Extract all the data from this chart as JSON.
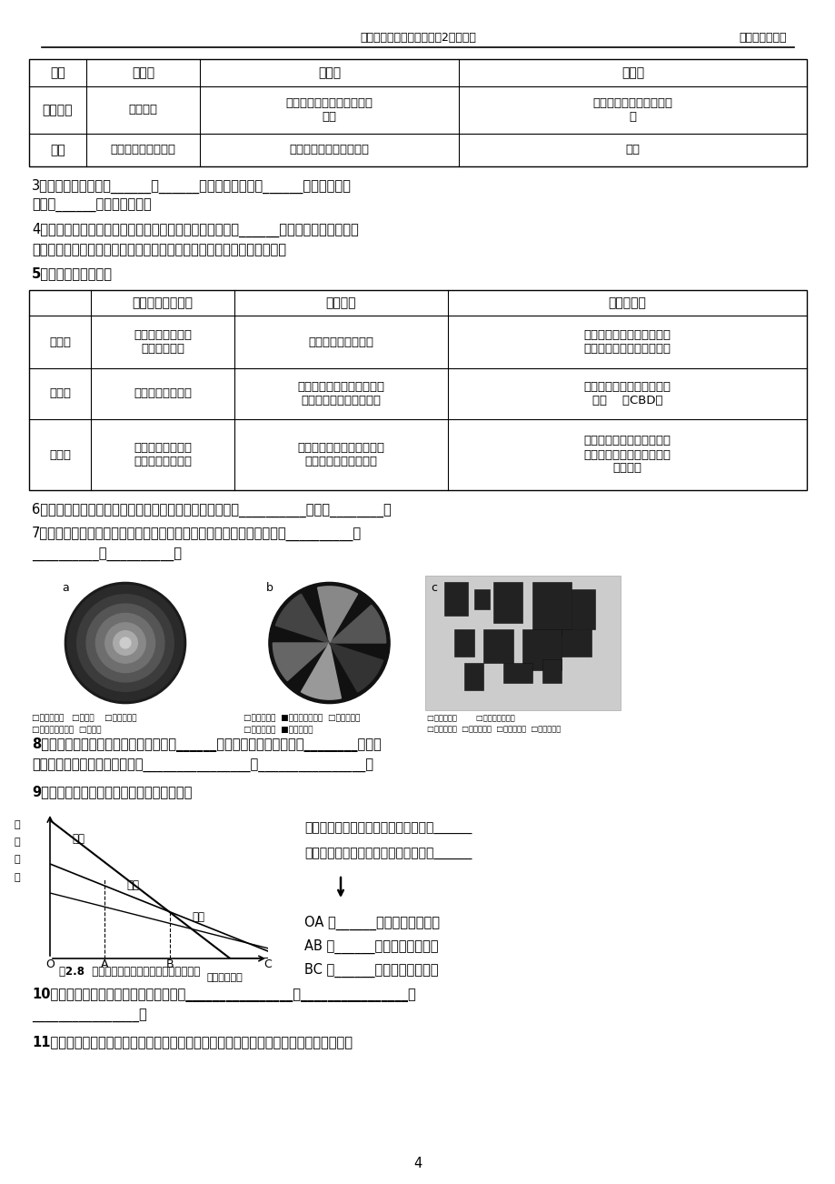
{
  "page_bg": "#ffffff",
  "header_left": "高二学业水平考试地理必修2复习提纲",
  "header_right": "五中地理组编写",
  "footer_page": "4",
  "table1_headers": [
    "类型",
    "团块状",
    "条带状",
    "组团状"
  ],
  "table1_row1": [
    "分布地区",
    "平原地区",
    "沿铁路或河流、谷地等被迫\n延伸",
    "地形崎岖不平的丘陵、山\n地"
  ],
  "table1_row2": [
    "举例",
    "成都、合肥、华盛顿",
    "兰州、洛阳、西宁、宜昌",
    "重庆"
  ],
  "text3a": "3、城市用地可以分为______、______、政府机关用地、______、休憩及绿化",
  "text3b": "用地、______、农业用地等。",
  "text4a": "4、不同类型的土地利用在城市里的集中，就形成了不同的______区，其之间无明确的界",
  "text4b": "线，某一种功能区以某种土地利用方式为主，可能兼有其他类型的用地。",
  "text5": "5、主要功能区的比较",
  "table2_headers": [
    "",
    "占用城市土地面积",
    "区位特点",
    "功能区特点"
  ],
  "table2_rows": [
    [
      "住宅区",
      "城市中最为广泛的\n土地利用方式",
      "地价较低，污染较少",
      "出现了中高级住宅和低级住\n宅的分化；两者呈背向发展"
    ],
    [
      "商业区",
      "占用土地相对较少",
      "位于交通便捷的市中心、交\n通干线两侧或街角路口处",
      "经济活动频繁；建筑物高大\n稠密    （CBD）"
    ],
    [
      "工业区",
      "一个城市通常具有\n一个或多个工业区",
      "不断向市区外缘移动，趋向\n于沿主要交通干线分布",
      "专业化程度高，集聚性强，\n城市内部工业区相互集聚形\n成工业区"
    ]
  ],
  "text6": "6、在城市中，不同功能区的分布和组合构成了城市内部的__________，也叫________。",
  "text7": "7、不同城市其内部空间结构是不相同的，代表性的城市地域结构模式有__________、",
  "text7b": "__________、__________。",
  "img_legend_a1": "□中心商业区   □近郊带    □工人住宅里",
  "img_legend_a2": "□中产阶层住宅里  □远郊带",
  "img_legend_b1": "□中心商业区  ■住宅、轻工业区  □稳商住宅区",
  "img_legend_b2": "□中级住宅区  ■高级住宅区",
  "img_legend_c1": "□中心商业区           □低收、轻工业区",
  "img_legend_c2": "□中级住宅区  □高级住宅区  □郊外住宅区  □郊外工业区",
  "text8a": "8、影响城市内部空间结构的主要因素是______因素，体现在各种活动的________能力。",
  "text8b": "影响付租能力高低的因素主要有________________、________________。",
  "text9": "9、各类土地利用付租能力随距离递减示意图",
  "chart_right1": "商业的付租能力受市中心距离的影响最______",
  "chart_right2": "工业的付租能力受市中心距离的影响最______",
  "chart_oa": "OA 段______活动付租能力最强",
  "chart_ab": "AB 段______活动付租能力最强",
  "chart_bc": "BC 段______活动付租能力最强",
  "chart_caption": "图2.8  各类土地利用付租能力随距离递减示意",
  "chart_ylabel": "地\n租\n水\n平",
  "chart_xlabel": "距市中心距离",
  "text10a": "10、影响城市内部空间结构的其他因素有________________、________________、",
  "text10b": "________________。",
  "text11": "11、城市内部空间结构随城市发展而逐渐形成和变化的。早期：功能区分异不明显，市中"
}
